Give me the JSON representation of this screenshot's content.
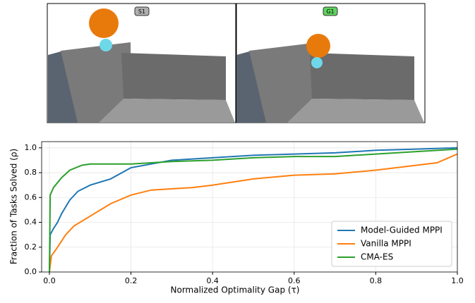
{
  "panels": [
    {
      "label": "S1"
    },
    {
      "label": "G1"
    }
  ],
  "chart_data": {
    "type": "line",
    "x_label": "Normalized Optimality Gap (τ)",
    "y_label": "Fraction of Tasks Solved (ρ)",
    "xlim": [
      -0.019,
      1.0
    ],
    "ylim": [
      0,
      1.05
    ],
    "xticks": [
      {
        "value": 0,
        "label": "0.0"
      },
      {
        "value": 0.2,
        "label": "0.2"
      },
      {
        "value": 0.4,
        "label": "0.4"
      },
      {
        "value": 0.6,
        "label": "0.6"
      },
      {
        "value": 0.8,
        "label": "0.8"
      },
      {
        "value": 1,
        "label": "1.0"
      }
    ],
    "yticks": [
      {
        "value": 0,
        "label": "0.0"
      },
      {
        "value": 0.2,
        "label": "0.2"
      },
      {
        "value": 0.4,
        "label": "0.4"
      },
      {
        "value": 0.6,
        "label": "0.6"
      },
      {
        "value": 0.8,
        "label": "0.8"
      },
      {
        "value": 1,
        "label": "1.0"
      }
    ],
    "grid": true,
    "legend": "lower-right",
    "series": [
      {
        "name": "Model-Guided MPPI",
        "color": "#1f77b4",
        "x": [
          0,
          0.002,
          0.01,
          0.02,
          0.03,
          0.05,
          0.07,
          0.1,
          0.15,
          0.2,
          0.25,
          0.3,
          0.4,
          0.5,
          0.6,
          0.7,
          0.8,
          0.9,
          1.0
        ],
        "values": [
          0,
          0.3,
          0.35,
          0.4,
          0.47,
          0.58,
          0.65,
          0.7,
          0.75,
          0.84,
          0.87,
          0.9,
          0.92,
          0.94,
          0.95,
          0.96,
          0.98,
          0.99,
          1.0
        ]
      },
      {
        "name": "Vanilla MPPI",
        "color": "#ff7f0e",
        "x": [
          0,
          0.005,
          0.02,
          0.04,
          0.06,
          0.1,
          0.15,
          0.2,
          0.25,
          0.35,
          0.4,
          0.5,
          0.6,
          0.7,
          0.8,
          0.9,
          0.95,
          1.0
        ],
        "values": [
          0,
          0.13,
          0.2,
          0.3,
          0.37,
          0.45,
          0.55,
          0.62,
          0.66,
          0.68,
          0.7,
          0.75,
          0.78,
          0.79,
          0.82,
          0.86,
          0.88,
          0.95
        ]
      },
      {
        "name": "CMA-ES",
        "color": "#2ca02c",
        "x": [
          0,
          0.002,
          0.01,
          0.03,
          0.05,
          0.08,
          0.1,
          0.2,
          0.25,
          0.3,
          0.4,
          0.5,
          0.6,
          0.7,
          0.8,
          0.9,
          1.0
        ],
        "values": [
          0,
          0.62,
          0.68,
          0.76,
          0.82,
          0.86,
          0.87,
          0.87,
          0.88,
          0.89,
          0.9,
          0.92,
          0.93,
          0.93,
          0.95,
          0.97,
          0.99
        ]
      }
    ]
  }
}
